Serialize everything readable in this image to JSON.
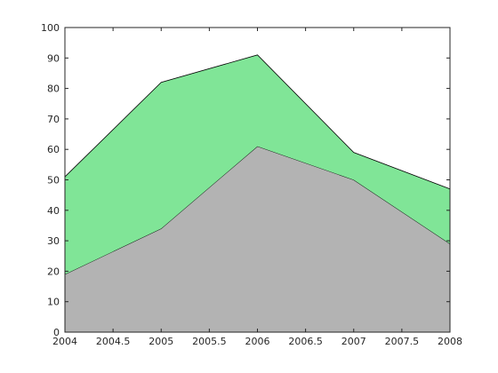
{
  "chart_data": {
    "type": "area",
    "stacked": true,
    "title": "",
    "xlabel": "",
    "ylabel": "",
    "x": [
      2004,
      2005,
      2006,
      2007,
      2008
    ],
    "xlim": [
      2004,
      2008
    ],
    "ylim": [
      0,
      100
    ],
    "xticks": [
      2004,
      2004.5,
      2005,
      2005.5,
      2006,
      2006.5,
      2007,
      2007.5,
      2008
    ],
    "xtick_labels": [
      "2004",
      "2004.5",
      "2005",
      "2005.5",
      "2006",
      "2006.5",
      "2007",
      "2007.5",
      "2008"
    ],
    "yticks": [
      0,
      10,
      20,
      30,
      40,
      50,
      60,
      70,
      80,
      90,
      100
    ],
    "ytick_labels": [
      "0",
      "10",
      "20",
      "30",
      "40",
      "50",
      "60",
      "70",
      "80",
      "90",
      "100"
    ],
    "grid": false,
    "legend": "none",
    "series": [
      {
        "values": [
          19,
          34,
          61,
          50,
          29
        ],
        "color": "#b3b3b3"
      },
      {
        "values": [
          32,
          48,
          30,
          9,
          18
        ],
        "color": "#80e597"
      }
    ],
    "stacked_totals": [
      51,
      82,
      91,
      59,
      47
    ]
  }
}
